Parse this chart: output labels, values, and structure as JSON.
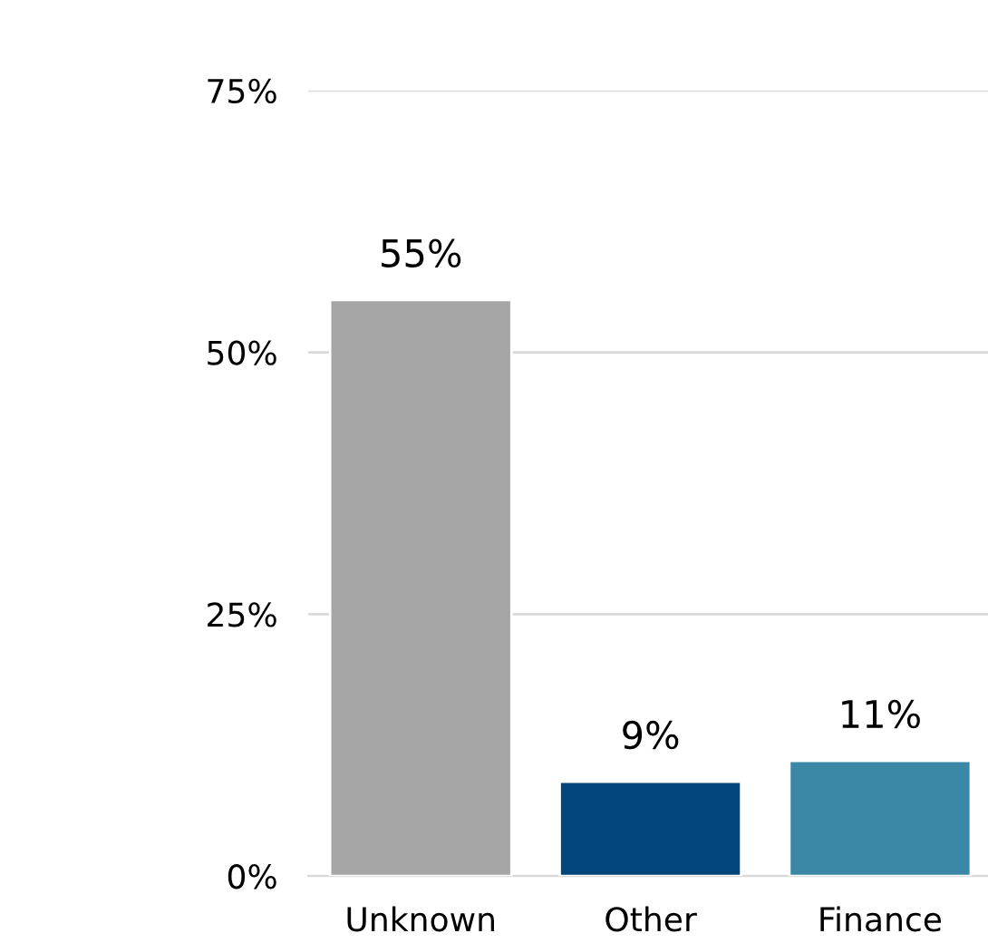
{
  "chart_data": {
    "type": "bar",
    "categories": [
      "Unknown",
      "Other",
      "Finance"
    ],
    "values": [
      55,
      9,
      11
    ],
    "colors": [
      "#a5a5a5",
      "#00467a",
      "#3b88a6"
    ],
    "value_labels": [
      "55%",
      "9%",
      "11%"
    ],
    "ylim": [
      0,
      75
    ],
    "yticks": [
      {
        "value": 0,
        "label": "0%"
      },
      {
        "value": 25,
        "label": "25%"
      },
      {
        "value": 50,
        "label": "50%"
      },
      {
        "value": 75,
        "label": "75%"
      }
    ],
    "grid": "y",
    "legend": false
  }
}
